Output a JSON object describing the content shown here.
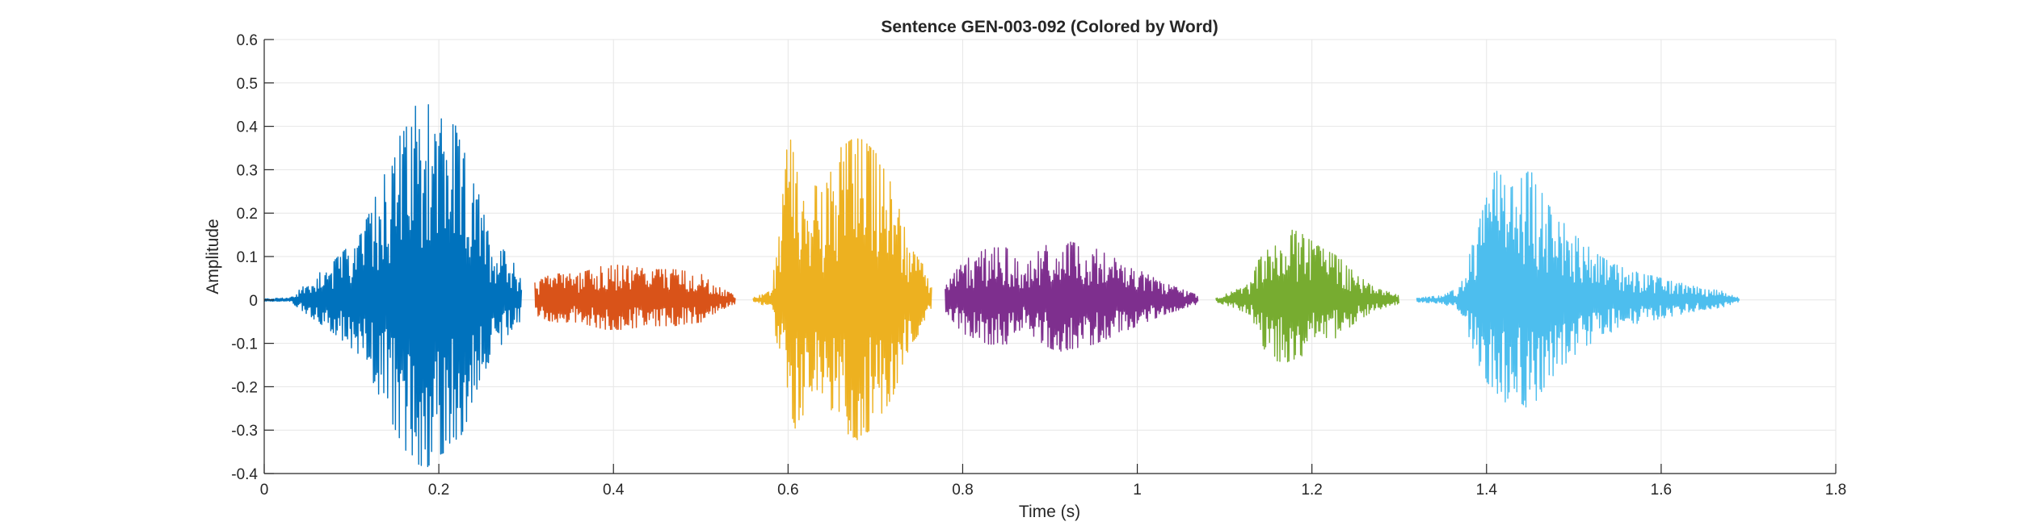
{
  "chart_data": {
    "type": "line",
    "title": "Sentence GEN-003-092 (Colored by Word)",
    "xlabel": "Time (s)",
    "ylabel": "Amplitude",
    "xlim": [
      0,
      1.8
    ],
    "ylim": [
      -0.4,
      0.6
    ],
    "xticks": [
      0,
      0.2,
      0.4,
      0.6,
      0.8,
      1,
      1.2,
      1.4,
      1.6,
      1.8
    ],
    "xtick_labels": [
      "0",
      "0.2",
      "0.4",
      "0.6",
      "0.8",
      "1",
      "1.2",
      "1.4",
      "1.6",
      "1.8"
    ],
    "yticks": [
      -0.4,
      -0.3,
      -0.2,
      -0.1,
      0,
      0.1,
      0.2,
      0.3,
      0.4,
      0.5,
      0.6
    ],
    "ytick_labels": [
      "-0.4",
      "-0.3",
      "-0.2",
      "-0.1",
      "0",
      "0.1",
      "0.2",
      "0.3",
      "0.4",
      "0.5",
      "0.6"
    ],
    "grid": true,
    "legend": "none",
    "series": [
      {
        "color": "#0072BD",
        "start": 0.0,
        "end": 0.295,
        "envelope": [
          [
            0.0,
            0.003
          ],
          [
            0.03,
            0.005
          ],
          [
            0.05,
            0.04
          ],
          [
            0.08,
            0.09
          ],
          [
            0.11,
            0.15
          ],
          [
            0.14,
            0.3
          ],
          [
            0.16,
            0.4
          ],
          [
            0.18,
            0.47
          ],
          [
            0.2,
            0.42
          ],
          [
            0.22,
            0.4
          ],
          [
            0.24,
            0.28
          ],
          [
            0.26,
            0.15
          ],
          [
            0.28,
            0.1
          ],
          [
            0.295,
            0.06
          ]
        ]
      },
      {
        "color": "#D95319",
        "start": 0.31,
        "end": 0.54,
        "envelope": [
          [
            0.31,
            0.04
          ],
          [
            0.33,
            0.06
          ],
          [
            0.36,
            0.06
          ],
          [
            0.39,
            0.08
          ],
          [
            0.41,
            0.08
          ],
          [
            0.44,
            0.07
          ],
          [
            0.47,
            0.07
          ],
          [
            0.5,
            0.06
          ],
          [
            0.52,
            0.03
          ],
          [
            0.54,
            0.01
          ]
        ]
      },
      {
        "color": "#EDB120",
        "start": 0.56,
        "end": 0.765,
        "envelope": [
          [
            0.56,
            0.005
          ],
          [
            0.58,
            0.02
          ],
          [
            0.59,
            0.15
          ],
          [
            0.6,
            0.38
          ],
          [
            0.62,
            0.3
          ],
          [
            0.64,
            0.25
          ],
          [
            0.66,
            0.35
          ],
          [
            0.68,
            0.38
          ],
          [
            0.7,
            0.34
          ],
          [
            0.72,
            0.26
          ],
          [
            0.74,
            0.12
          ],
          [
            0.755,
            0.08
          ],
          [
            0.765,
            0.03
          ]
        ]
      },
      {
        "color": "#7E2F8E",
        "start": 0.78,
        "end": 1.07,
        "envelope": [
          [
            0.78,
            0.03
          ],
          [
            0.8,
            0.09
          ],
          [
            0.83,
            0.12
          ],
          [
            0.85,
            0.12
          ],
          [
            0.87,
            0.07
          ],
          [
            0.89,
            0.12
          ],
          [
            0.91,
            0.14
          ],
          [
            0.93,
            0.13
          ],
          [
            0.95,
            0.12
          ],
          [
            0.97,
            0.1
          ],
          [
            1.0,
            0.07
          ],
          [
            1.03,
            0.04
          ],
          [
            1.07,
            0.01
          ]
        ]
      },
      {
        "color": "#77AC30",
        "start": 1.09,
        "end": 1.3,
        "envelope": [
          [
            1.09,
            0.005
          ],
          [
            1.11,
            0.02
          ],
          [
            1.13,
            0.04
          ],
          [
            1.15,
            0.16
          ],
          [
            1.17,
            0.17
          ],
          [
            1.19,
            0.15
          ],
          [
            1.21,
            0.12
          ],
          [
            1.23,
            0.1
          ],
          [
            1.25,
            0.06
          ],
          [
            1.27,
            0.03
          ],
          [
            1.3,
            0.01
          ]
        ]
      },
      {
        "color": "#4DBEEE",
        "start": 1.32,
        "end": 1.69,
        "envelope": [
          [
            1.32,
            0.005
          ],
          [
            1.35,
            0.01
          ],
          [
            1.37,
            0.03
          ],
          [
            1.39,
            0.17
          ],
          [
            1.41,
            0.3
          ],
          [
            1.43,
            0.26
          ],
          [
            1.45,
            0.3
          ],
          [
            1.47,
            0.22
          ],
          [
            1.5,
            0.15
          ],
          [
            1.53,
            0.1
          ],
          [
            1.56,
            0.07
          ],
          [
            1.6,
            0.05
          ],
          [
            1.64,
            0.03
          ],
          [
            1.67,
            0.02
          ],
          [
            1.69,
            0.005
          ]
        ]
      }
    ]
  }
}
